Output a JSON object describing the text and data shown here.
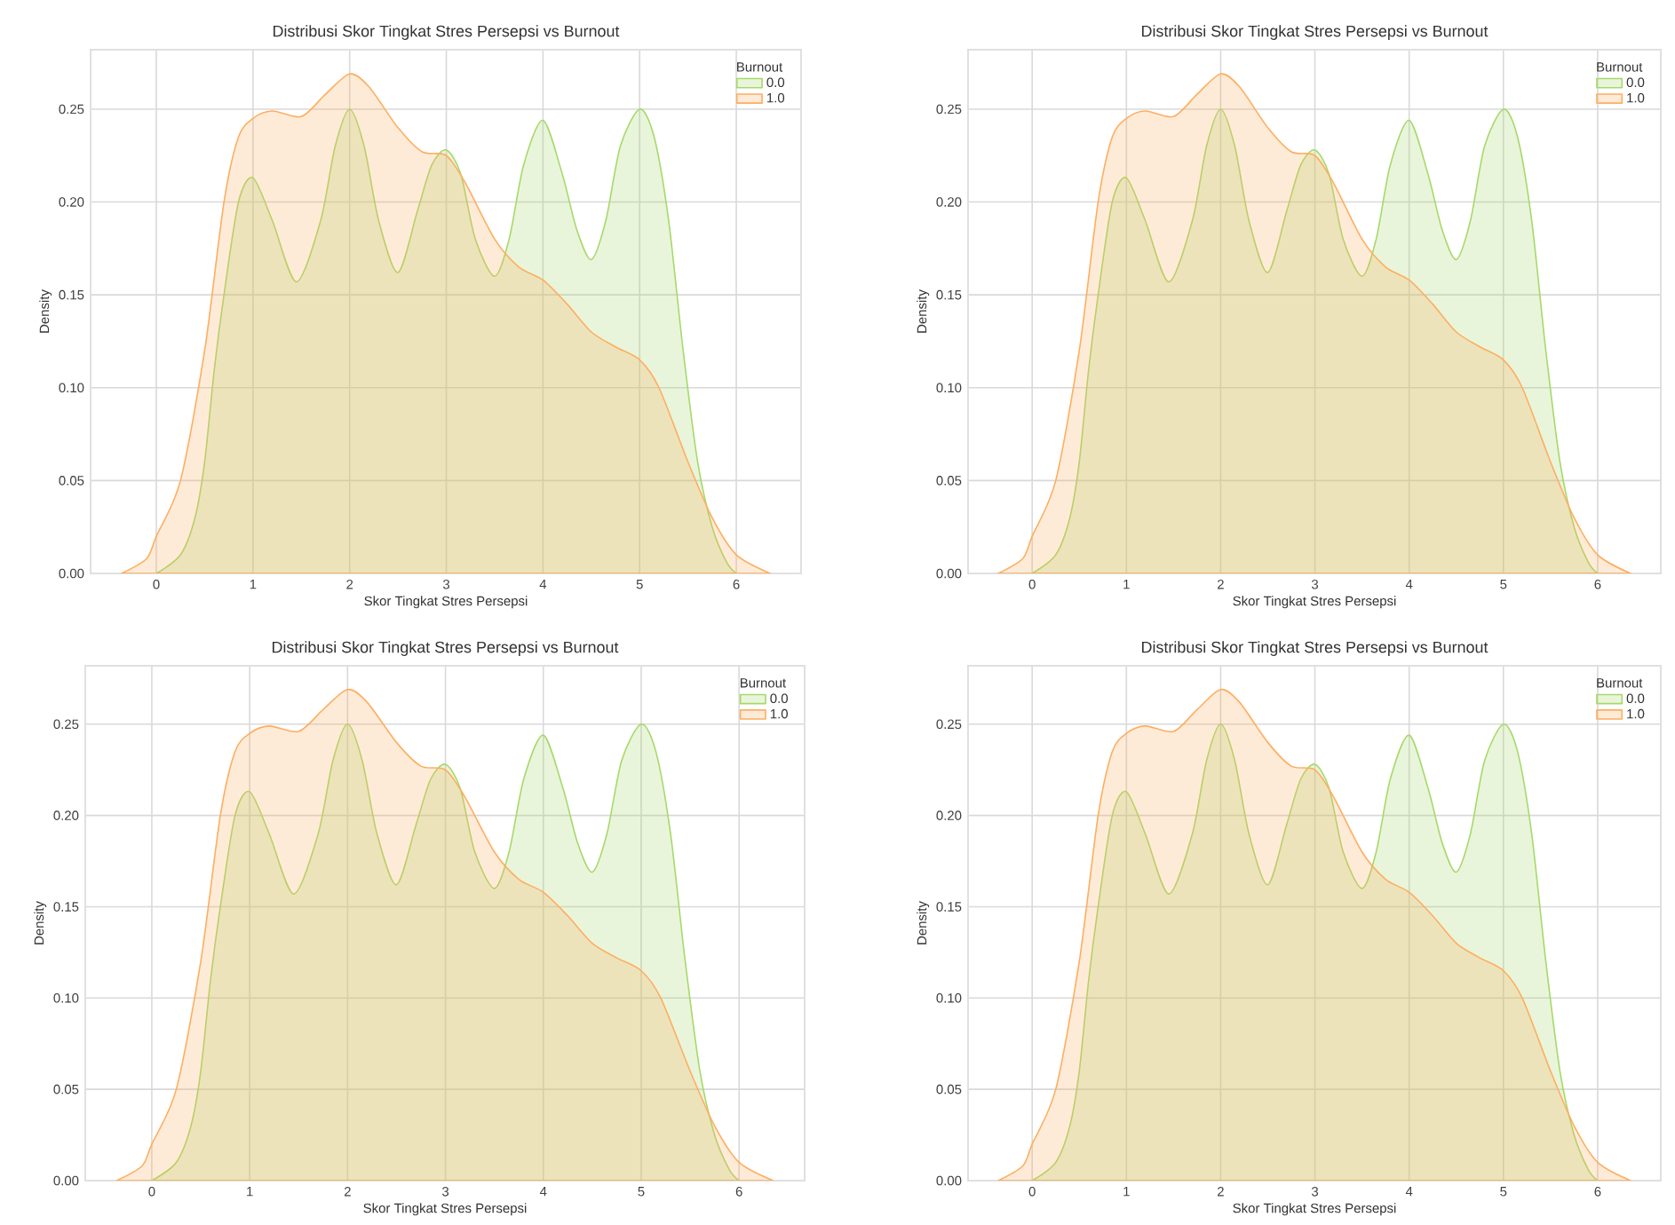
{
  "chart_data": [
    {
      "type": "area",
      "title": "Distribusi Skor Tingkat Stres Persepsi vs Burnout",
      "xlabel": "Skor Tingkat Stres Persepsi",
      "ylabel": "Density",
      "legend_title": "Burnout",
      "legend": "top right",
      "grid": true,
      "xlim": [
        -0.68,
        6.67
      ],
      "ylim": [
        0,
        0.282
      ],
      "xticks": [
        0,
        1,
        2,
        3,
        4,
        5,
        6
      ],
      "yticks": [
        {
          "value": 0,
          "label": "0.00"
        },
        {
          "value": 0.05,
          "label": "0.05"
        },
        {
          "value": 0.1,
          "label": "0.10"
        },
        {
          "value": 0.15,
          "label": "0.15"
        },
        {
          "value": 0.2,
          "label": "0.20"
        },
        {
          "value": 0.25,
          "label": "0.25"
        }
      ],
      "series": [
        {
          "name": "0.0",
          "color": "#a6d96a",
          "x": [
            0,
            0.25,
            0.4,
            0.5,
            0.6,
            0.7,
            0.85,
            1.0,
            1.2,
            1.45,
            1.7,
            1.85,
            2.0,
            2.15,
            2.3,
            2.5,
            2.7,
            2.85,
            3.0,
            3.15,
            3.3,
            3.5,
            3.65,
            3.8,
            4.0,
            4.2,
            4.35,
            4.5,
            4.65,
            4.8,
            5.0,
            5.15,
            5.3,
            5.45,
            5.6,
            5.75,
            5.9,
            6.0
          ],
          "values": [
            0.0,
            0.01,
            0.03,
            0.06,
            0.11,
            0.15,
            0.2,
            0.213,
            0.19,
            0.157,
            0.19,
            0.23,
            0.25,
            0.23,
            0.19,
            0.162,
            0.195,
            0.22,
            0.228,
            0.215,
            0.18,
            0.16,
            0.18,
            0.22,
            0.244,
            0.215,
            0.185,
            0.169,
            0.19,
            0.23,
            0.25,
            0.235,
            0.19,
            0.12,
            0.06,
            0.025,
            0.006,
            0.0
          ]
        },
        {
          "name": "1.0",
          "color": "#fdae61",
          "x": [
            -0.36,
            -0.1,
            0.0,
            0.25,
            0.5,
            0.7,
            0.85,
            1.0,
            1.2,
            1.5,
            1.75,
            2.0,
            2.2,
            2.5,
            2.75,
            3.0,
            3.2,
            3.5,
            3.75,
            4.0,
            4.25,
            4.5,
            4.75,
            5.0,
            5.2,
            5.5,
            5.75,
            6.0,
            6.35
          ],
          "values": [
            0.0,
            0.008,
            0.02,
            0.05,
            0.12,
            0.2,
            0.235,
            0.245,
            0.249,
            0.246,
            0.258,
            0.269,
            0.262,
            0.24,
            0.227,
            0.225,
            0.21,
            0.18,
            0.165,
            0.158,
            0.145,
            0.13,
            0.122,
            0.115,
            0.1,
            0.06,
            0.03,
            0.01,
            0.0
          ]
        }
      ]
    },
    {
      "type": "area",
      "title": "Distribusi Skor Tingkat Stres Persepsi vs Burnout",
      "xlabel": "Skor Tingkat Stres Persepsi",
      "ylabel": "Density",
      "legend_title": "Burnout",
      "legend": "top right",
      "grid": true,
      "xlim": [
        -0.68,
        6.67
      ],
      "ylim": [
        0,
        0.282
      ],
      "xticks": [
        0,
        1,
        2,
        3,
        4,
        5,
        6
      ],
      "yticks": [
        {
          "value": 0,
          "label": "0.00"
        },
        {
          "value": 0.05,
          "label": "0.05"
        },
        {
          "value": 0.1,
          "label": "0.10"
        },
        {
          "value": 0.15,
          "label": "0.15"
        },
        {
          "value": 0.2,
          "label": "0.20"
        },
        {
          "value": 0.25,
          "label": "0.25"
        }
      ],
      "series": [
        {
          "name": "0.0",
          "color": "#a6d96a",
          "x": [
            0,
            0.25,
            0.4,
            0.5,
            0.6,
            0.7,
            0.85,
            1.0,
            1.2,
            1.45,
            1.7,
            1.85,
            2.0,
            2.15,
            2.3,
            2.5,
            2.7,
            2.85,
            3.0,
            3.15,
            3.3,
            3.5,
            3.65,
            3.8,
            4.0,
            4.2,
            4.35,
            4.5,
            4.65,
            4.8,
            5.0,
            5.15,
            5.3,
            5.45,
            5.6,
            5.75,
            5.9,
            6.0
          ],
          "values": [
            0.0,
            0.01,
            0.03,
            0.06,
            0.11,
            0.15,
            0.2,
            0.213,
            0.19,
            0.157,
            0.19,
            0.23,
            0.25,
            0.23,
            0.19,
            0.162,
            0.195,
            0.22,
            0.228,
            0.215,
            0.18,
            0.16,
            0.18,
            0.22,
            0.244,
            0.215,
            0.185,
            0.169,
            0.19,
            0.23,
            0.25,
            0.235,
            0.19,
            0.12,
            0.06,
            0.025,
            0.006,
            0.0
          ]
        },
        {
          "name": "1.0",
          "color": "#fdae61",
          "x": [
            -0.36,
            -0.1,
            0.0,
            0.25,
            0.5,
            0.7,
            0.85,
            1.0,
            1.2,
            1.5,
            1.75,
            2.0,
            2.2,
            2.5,
            2.75,
            3.0,
            3.2,
            3.5,
            3.75,
            4.0,
            4.25,
            4.5,
            4.75,
            5.0,
            5.2,
            5.5,
            5.75,
            6.0,
            6.35
          ],
          "values": [
            0.0,
            0.008,
            0.02,
            0.05,
            0.12,
            0.2,
            0.235,
            0.245,
            0.249,
            0.246,
            0.258,
            0.269,
            0.262,
            0.24,
            0.227,
            0.225,
            0.21,
            0.18,
            0.165,
            0.158,
            0.145,
            0.13,
            0.122,
            0.115,
            0.1,
            0.06,
            0.03,
            0.01,
            0.0
          ]
        }
      ]
    },
    {
      "type": "area",
      "title": "Distribusi Skor Tingkat Stres Persepsi vs Burnout",
      "xlabel": "Skor Tingkat Stres Persepsi",
      "ylabel": "Density",
      "legend_title": "Burnout",
      "legend": "top right",
      "grid": true,
      "xlim": [
        -0.68,
        6.67
      ],
      "ylim": [
        0,
        0.282
      ],
      "xticks": [
        0,
        1,
        2,
        3,
        4,
        5,
        6
      ],
      "yticks": [
        {
          "value": 0,
          "label": "0.00"
        },
        {
          "value": 0.05,
          "label": "0.05"
        },
        {
          "value": 0.1,
          "label": "0.10"
        },
        {
          "value": 0.15,
          "label": "0.15"
        },
        {
          "value": 0.2,
          "label": "0.20"
        },
        {
          "value": 0.25,
          "label": "0.25"
        }
      ],
      "series": [
        {
          "name": "0.0",
          "color": "#a6d96a",
          "x": [
            0,
            0.25,
            0.4,
            0.5,
            0.6,
            0.7,
            0.85,
            1.0,
            1.2,
            1.45,
            1.7,
            1.85,
            2.0,
            2.15,
            2.3,
            2.5,
            2.7,
            2.85,
            3.0,
            3.15,
            3.3,
            3.5,
            3.65,
            3.8,
            4.0,
            4.2,
            4.35,
            4.5,
            4.65,
            4.8,
            5.0,
            5.15,
            5.3,
            5.45,
            5.6,
            5.75,
            5.9,
            6.0
          ],
          "values": [
            0.0,
            0.01,
            0.03,
            0.06,
            0.11,
            0.15,
            0.2,
            0.213,
            0.19,
            0.157,
            0.19,
            0.23,
            0.25,
            0.23,
            0.19,
            0.162,
            0.195,
            0.22,
            0.228,
            0.215,
            0.18,
            0.16,
            0.18,
            0.22,
            0.244,
            0.215,
            0.185,
            0.169,
            0.19,
            0.23,
            0.25,
            0.235,
            0.19,
            0.12,
            0.06,
            0.025,
            0.006,
            0.0
          ]
        },
        {
          "name": "1.0",
          "color": "#fdae61",
          "x": [
            -0.36,
            -0.1,
            0.0,
            0.25,
            0.5,
            0.7,
            0.85,
            1.0,
            1.2,
            1.5,
            1.75,
            2.0,
            2.2,
            2.5,
            2.75,
            3.0,
            3.2,
            3.5,
            3.75,
            4.0,
            4.25,
            4.5,
            4.75,
            5.0,
            5.2,
            5.5,
            5.75,
            6.0,
            6.35
          ],
          "values": [
            0.0,
            0.008,
            0.02,
            0.05,
            0.12,
            0.2,
            0.235,
            0.245,
            0.249,
            0.246,
            0.258,
            0.269,
            0.262,
            0.24,
            0.227,
            0.225,
            0.21,
            0.18,
            0.165,
            0.158,
            0.145,
            0.13,
            0.122,
            0.115,
            0.1,
            0.06,
            0.03,
            0.01,
            0.0
          ]
        }
      ]
    },
    {
      "type": "area",
      "title": "Distribusi Skor Tingkat Stres Persepsi vs Burnout",
      "xlabel": "Skor Tingkat Stres Persepsi",
      "ylabel": "Density",
      "legend_title": "Burnout",
      "legend": "top right",
      "grid": true,
      "xlim": [
        -0.68,
        6.67
      ],
      "ylim": [
        0,
        0.282
      ],
      "xticks": [
        0,
        1,
        2,
        3,
        4,
        5,
        6
      ],
      "yticks": [
        {
          "value": 0,
          "label": "0.00"
        },
        {
          "value": 0.05,
          "label": "0.05"
        },
        {
          "value": 0.1,
          "label": "0.10"
        },
        {
          "value": 0.15,
          "label": "0.15"
        },
        {
          "value": 0.2,
          "label": "0.20"
        },
        {
          "value": 0.25,
          "label": "0.25"
        }
      ],
      "series": [
        {
          "name": "0.0",
          "color": "#a6d96a",
          "x": [
            0,
            0.25,
            0.4,
            0.5,
            0.6,
            0.7,
            0.85,
            1.0,
            1.2,
            1.45,
            1.7,
            1.85,
            2.0,
            2.15,
            2.3,
            2.5,
            2.7,
            2.85,
            3.0,
            3.15,
            3.3,
            3.5,
            3.65,
            3.8,
            4.0,
            4.2,
            4.35,
            4.5,
            4.65,
            4.8,
            5.0,
            5.15,
            5.3,
            5.45,
            5.6,
            5.75,
            5.9,
            6.0
          ],
          "values": [
            0.0,
            0.01,
            0.03,
            0.06,
            0.11,
            0.15,
            0.2,
            0.213,
            0.19,
            0.157,
            0.19,
            0.23,
            0.25,
            0.23,
            0.19,
            0.162,
            0.195,
            0.22,
            0.228,
            0.215,
            0.18,
            0.16,
            0.18,
            0.22,
            0.244,
            0.215,
            0.185,
            0.169,
            0.19,
            0.23,
            0.25,
            0.235,
            0.19,
            0.12,
            0.06,
            0.025,
            0.006,
            0.0
          ]
        },
        {
          "name": "1.0",
          "color": "#fdae61",
          "x": [
            -0.36,
            -0.1,
            0.0,
            0.25,
            0.5,
            0.7,
            0.85,
            1.0,
            1.2,
            1.5,
            1.75,
            2.0,
            2.2,
            2.5,
            2.75,
            3.0,
            3.2,
            3.5,
            3.75,
            4.0,
            4.25,
            4.5,
            4.75,
            5.0,
            5.2,
            5.5,
            5.75,
            6.0,
            6.35
          ],
          "values": [
            0.0,
            0.008,
            0.02,
            0.05,
            0.12,
            0.2,
            0.235,
            0.245,
            0.249,
            0.246,
            0.258,
            0.269,
            0.262,
            0.24,
            0.227,
            0.225,
            0.21,
            0.18,
            0.165,
            0.158,
            0.145,
            0.13,
            0.122,
            0.115,
            0.1,
            0.06,
            0.03,
            0.01,
            0.0
          ]
        }
      ]
    }
  ]
}
